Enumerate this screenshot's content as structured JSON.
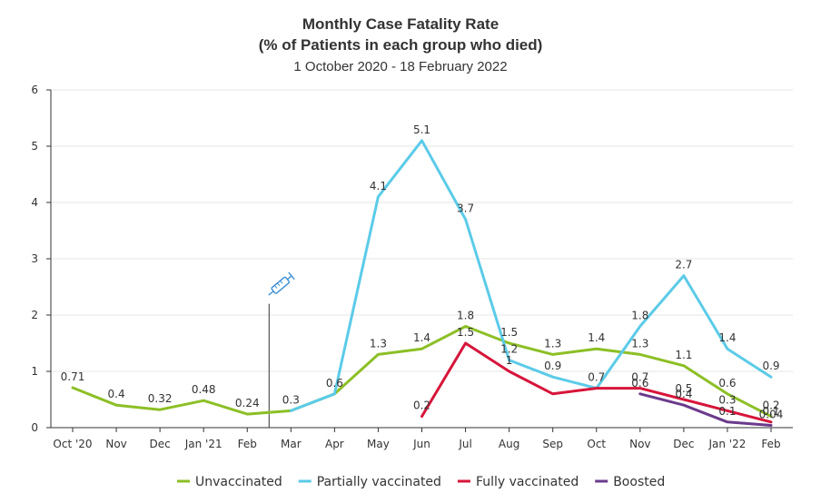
{
  "chart_data": {
    "type": "line",
    "title": "Monthly Case Fatality Rate",
    "subtitle_line1": "(% of Patients in each group who died)",
    "subtitle_line2": "1 October 2020 - 18 February 2022",
    "categories": [
      "Oct '20",
      "Nov",
      "Dec",
      "Jan '21",
      "Feb",
      "Mar",
      "Apr",
      "May",
      "Jun",
      "Jul",
      "Aug",
      "Sep",
      "Oct",
      "Nov",
      "Dec",
      "Jan '22",
      "Feb"
    ],
    "ylim": [
      0,
      6
    ],
    "yticks": [
      "0",
      "1",
      "2",
      "3",
      "4",
      "5",
      "6"
    ],
    "legend_position": "bottom",
    "grid": true,
    "annotation": {
      "icon": "syringe-icon",
      "position_between": [
        "Feb",
        "Mar"
      ],
      "meaning": "vaccination start"
    },
    "series": [
      {
        "name": "Unvaccinated",
        "color": "#8cbf26",
        "values": [
          0.71,
          0.4,
          0.32,
          0.48,
          0.24,
          0.3,
          0.6,
          1.3,
          1.4,
          1.8,
          1.5,
          1.3,
          1.4,
          1.3,
          1.1,
          0.6,
          0.2
        ],
        "labels": [
          "0.71",
          "0.4",
          "0.32",
          "0.48",
          "0.24",
          "0.3",
          "0.6",
          "1.3",
          "1.4",
          "1.8",
          "1.5",
          "1.3",
          "1.4",
          "1.3",
          "1.1",
          "0.6",
          "0.2"
        ]
      },
      {
        "name": "Partially vaccinated",
        "color": "#5bcbe8",
        "values": [
          null,
          null,
          null,
          null,
          null,
          0.3,
          0.6,
          4.1,
          5.1,
          3.7,
          1.2,
          0.9,
          0.7,
          1.8,
          2.7,
          1.4,
          0.9
        ],
        "labels": [
          null,
          null,
          null,
          null,
          null,
          null,
          null,
          "4.1",
          "5.1",
          "3.7",
          "1.2",
          "0.9",
          null,
          "1.8",
          "2.7",
          "1.4",
          "0.9"
        ]
      },
      {
        "name": "Fully vaccinated",
        "color": "#d7153a",
        "values": [
          null,
          null,
          null,
          null,
          null,
          null,
          null,
          null,
          0.2,
          1.5,
          1.0,
          0.6,
          0.7,
          0.7,
          0.5,
          0.3,
          0.1
        ],
        "labels": [
          null,
          null,
          null,
          null,
          null,
          null,
          null,
          null,
          "0.2",
          "1.5",
          "1",
          null,
          "0.7",
          "0.7",
          "0.5",
          "0.3",
          "0.1"
        ]
      },
      {
        "name": "Boosted",
        "color": "#6b3a8c",
        "values": [
          null,
          null,
          null,
          null,
          null,
          null,
          null,
          null,
          null,
          null,
          null,
          null,
          null,
          0.6,
          0.4,
          0.1,
          0.04
        ],
        "labels": [
          null,
          null,
          null,
          null,
          null,
          null,
          null,
          null,
          null,
          null,
          null,
          null,
          null,
          "0.6",
          "0.4",
          "0.1",
          "0.04"
        ]
      }
    ]
  }
}
